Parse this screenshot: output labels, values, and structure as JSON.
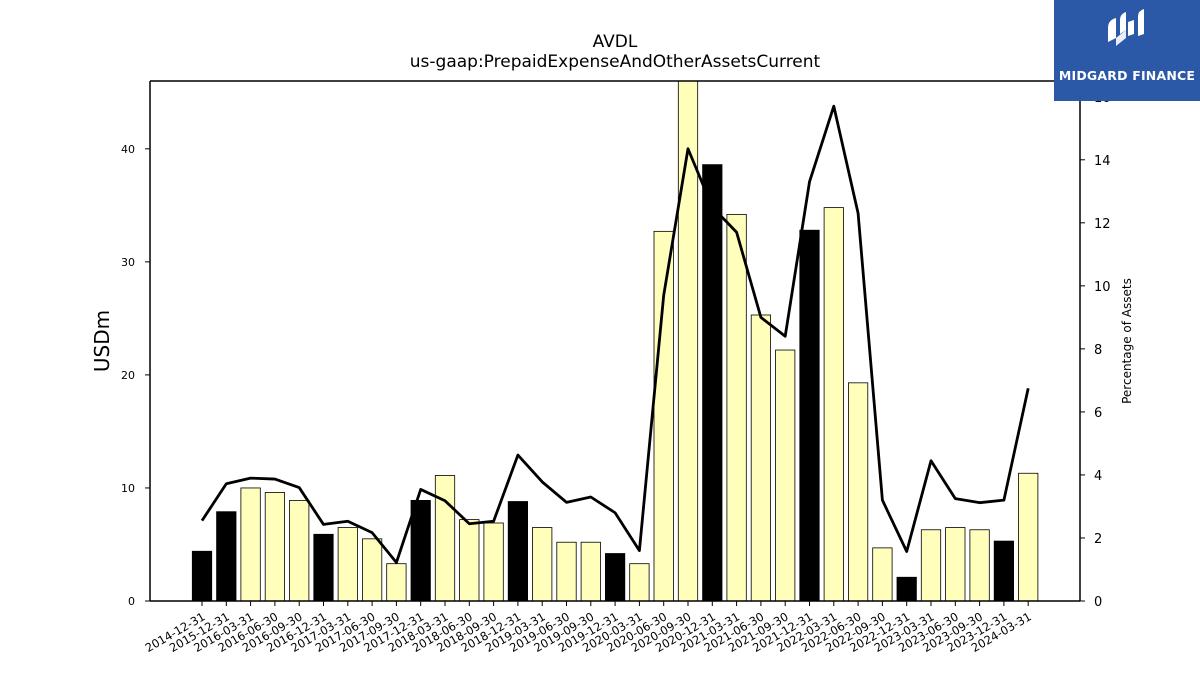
{
  "chart_data": {
    "type": "bar",
    "title": "AVDL",
    "subtitle": "us-gaap:PrepaidExpenseAndOtherAssetsCurrent",
    "ylabel": "USDm",
    "y2label": "Percentage of Assets",
    "ylim": [
      0,
      46
    ],
    "y2lim": [
      0,
      16.5
    ],
    "yticks": [
      0,
      10,
      20,
      30,
      40
    ],
    "y2ticks": [
      0,
      2,
      4,
      6,
      8,
      10,
      12,
      14,
      16
    ],
    "categories": [
      "2014-12-31",
      "2015-12-31",
      "2016-03-31",
      "2016-06-30",
      "2016-09-30",
      "2016-12-31",
      "2017-03-31",
      "2017-06-30",
      "2017-09-30",
      "2017-12-31",
      "2018-03-31",
      "2018-06-30",
      "2018-09-30",
      "2018-12-31",
      "2019-03-31",
      "2019-06-30",
      "2019-09-30",
      "2019-12-31",
      "2020-03-31",
      "2020-06-30",
      "2020-09-30",
      "2020-12-31",
      "2021-03-31",
      "2021-06-30",
      "2021-09-30",
      "2021-12-31",
      "2022-03-31",
      "2022-06-30",
      "2022-09-30",
      "2022-12-31",
      "2023-03-31",
      "2023-06-30",
      "2023-09-30",
      "2023-12-31",
      "2024-03-31"
    ],
    "series": [
      {
        "axis": "left",
        "kind": "bar",
        "values": [
          4.4,
          7.9,
          10.0,
          9.6,
          8.9,
          5.9,
          6.5,
          5.5,
          3.3,
          8.9,
          11.1,
          7.2,
          6.9,
          8.8,
          6.5,
          5.2,
          5.2,
          4.2,
          3.3,
          32.7,
          46.0,
          38.6,
          34.2,
          25.3,
          22.2,
          32.8,
          34.8,
          19.3,
          4.7,
          2.1,
          6.3,
          6.5,
          6.3,
          5.3,
          11.3
        ],
        "fiscal_year_end": [
          true,
          true,
          false,
          false,
          false,
          true,
          false,
          false,
          false,
          true,
          false,
          false,
          false,
          true,
          false,
          false,
          false,
          true,
          false,
          false,
          false,
          true,
          false,
          false,
          false,
          true,
          false,
          false,
          false,
          true,
          false,
          false,
          false,
          true,
          false
        ]
      },
      {
        "axis": "right",
        "kind": "line",
        "values": [
          2.55,
          3.72,
          3.9,
          3.87,
          3.6,
          2.43,
          2.53,
          2.17,
          1.22,
          3.54,
          3.18,
          2.45,
          2.53,
          4.63,
          3.78,
          3.13,
          3.3,
          2.8,
          1.6,
          9.7,
          14.35,
          12.5,
          11.7,
          9.0,
          8.4,
          13.3,
          15.7,
          12.3,
          3.2,
          1.57,
          4.45,
          3.25,
          3.12,
          3.2,
          6.75
        ]
      }
    ],
    "grid": false,
    "colors": {
      "bar_fill": "#ffffbb",
      "bar_fill_year_end": "#000000",
      "bar_edge": "#000000",
      "line": "#000000"
    }
  },
  "logo": {
    "text": "MIDGARD FINANCE",
    "bg_color": "#2c58a8"
  }
}
